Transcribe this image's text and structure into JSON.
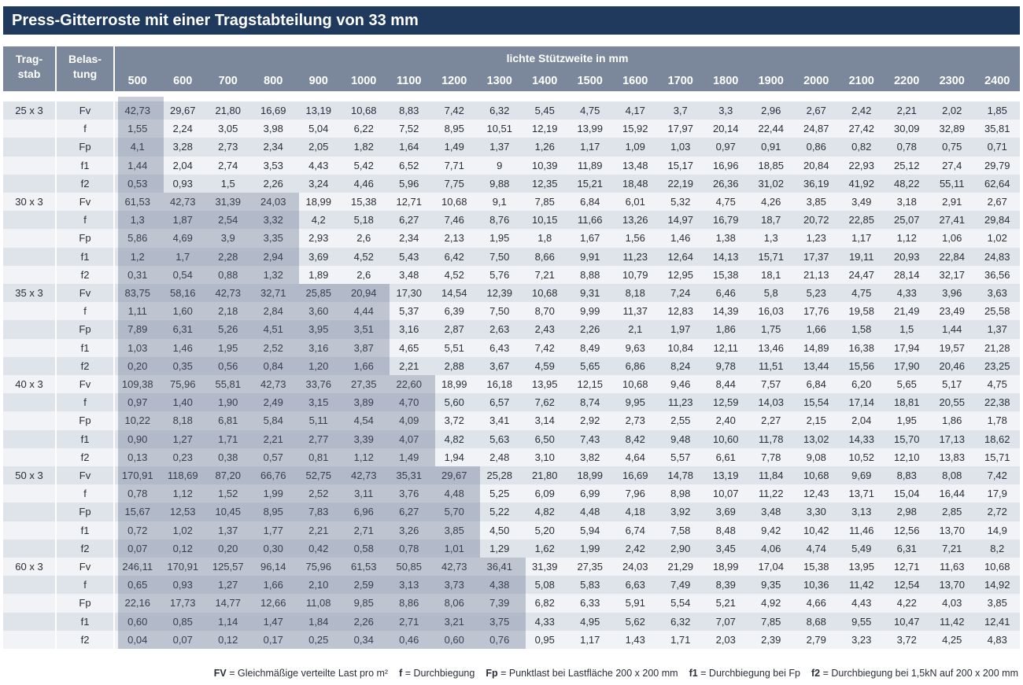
{
  "title": "Press-Gitterroste mit einer Tragstabteilung von 33 mm",
  "header": {
    "col1": [
      "Trag-",
      "stab"
    ],
    "col2": [
      "Belas-",
      "tung"
    ],
    "span_label": "lichte Stützweite in mm",
    "spans": [
      "500",
      "600",
      "700",
      "800",
      "900",
      "1000",
      "1100",
      "1200",
      "1300",
      "1400",
      "1500",
      "1600",
      "1700",
      "1800",
      "1900",
      "2000",
      "2100",
      "2200",
      "2300",
      "2400"
    ]
  },
  "groups": [
    {
      "bar": "25 x 3",
      "rows": [
        {
          "load": "Fv",
          "values": [
            "42,73",
            "29,67",
            "21,80",
            "16,69",
            "13,19",
            "10,68",
            "8,83",
            "7,42",
            "6,32",
            "5,45",
            "4,75",
            "4,17",
            "3,7",
            "3,3",
            "2,96",
            "2,67",
            "2,42",
            "2,21",
            "2,02",
            "1,85"
          ]
        },
        {
          "load": "f",
          "values": [
            "1,55",
            "2,24",
            "3,05",
            "3,98",
            "5,04",
            "6,22",
            "7,52",
            "8,95",
            "10,51",
            "12,19",
            "13,99",
            "15,92",
            "17,97",
            "20,14",
            "22,44",
            "24,87",
            "27,42",
            "30,09",
            "32,89",
            "35,81"
          ]
        },
        {
          "load": "Fp",
          "values": [
            "4,1",
            "3,28",
            "2,73",
            "2,34",
            "2,05",
            "1,82",
            "1,64",
            "1,49",
            "1,37",
            "1,26",
            "1,17",
            "1,09",
            "1,03",
            "0,97",
            "0,91",
            "0,86",
            "0,82",
            "0,78",
            "0,75",
            "0,71"
          ]
        },
        {
          "load": "f1",
          "values": [
            "1,44",
            "2,04",
            "2,74",
            "3,53",
            "4,43",
            "5,42",
            "6,52",
            "7,71",
            "9",
            "10,39",
            "11,89",
            "13,48",
            "15,17",
            "16,96",
            "18,85",
            "20,84",
            "22,93",
            "25,12",
            "27,4",
            "29,79"
          ]
        },
        {
          "load": "f2",
          "values": [
            "0,53",
            "0,93",
            "1,5",
            "2,26",
            "3,24",
            "4,46",
            "5,96",
            "7,75",
            "9,88",
            "12,35",
            "15,21",
            "18,48",
            "22,19",
            "26,36",
            "31,02",
            "36,19",
            "41,92",
            "48,22",
            "55,11",
            "62,64"
          ]
        }
      ]
    },
    {
      "bar": "30 x 3",
      "rows": [
        {
          "load": "Fv",
          "values": [
            "61,53",
            "42,73",
            "31,39",
            "24,03",
            "18,99",
            "15,38",
            "12,71",
            "10,68",
            "9,1",
            "7,85",
            "6,84",
            "6,01",
            "5,32",
            "4,75",
            "4,26",
            "3,85",
            "3,49",
            "3,18",
            "2,91",
            "2,67"
          ]
        },
        {
          "load": "f",
          "values": [
            "1,3",
            "1,87",
            "2,54",
            "3,32",
            "4,2",
            "5,18",
            "6,27",
            "7,46",
            "8,76",
            "10,15",
            "11,66",
            "13,26",
            "14,97",
            "16,79",
            "18,7",
            "20,72",
            "22,85",
            "25,07",
            "27,41",
            "29,84"
          ]
        },
        {
          "load": "Fp",
          "values": [
            "5,86",
            "4,69",
            "3,9",
            "3,35",
            "2,93",
            "2,6",
            "2,34",
            "2,13",
            "1,95",
            "1,8",
            "1,67",
            "1,56",
            "1,46",
            "1,38",
            "1,3",
            "1,23",
            "1,17",
            "1,12",
            "1,06",
            "1,02"
          ]
        },
        {
          "load": "f1",
          "values": [
            "1,2",
            "1,7",
            "2,28",
            "2,94",
            "3,69",
            "4,52",
            "5,43",
            "6,42",
            "7,50",
            "8,66",
            "9,91",
            "11,23",
            "12,64",
            "14,13",
            "15,71",
            "17,37",
            "19,11",
            "20,93",
            "22,84",
            "24,83"
          ]
        },
        {
          "load": "f2",
          "values": [
            "0,31",
            "0,54",
            "0,88",
            "1,32",
            "1,89",
            "2,6",
            "3,48",
            "4,52",
            "5,76",
            "7,21",
            "8,88",
            "10,79",
            "12,95",
            "15,38",
            "18,1",
            "21,13",
            "24,47",
            "28,14",
            "32,17",
            "36,56"
          ]
        }
      ]
    },
    {
      "bar": "35 x 3",
      "rows": [
        {
          "load": "Fv",
          "values": [
            "83,75",
            "58,16",
            "42,73",
            "32,71",
            "25,85",
            "20,94",
            "17,30",
            "14,54",
            "12,39",
            "10,68",
            "9,31",
            "8,18",
            "7,24",
            "6,46",
            "5,8",
            "5,23",
            "4,75",
            "4,33",
            "3,96",
            "3,63"
          ]
        },
        {
          "load": "f",
          "values": [
            "1,11",
            "1,60",
            "2,18",
            "2,84",
            "3,60",
            "4,44",
            "5,37",
            "6,39",
            "7,50",
            "8,70",
            "9,99",
            "11,37",
            "12,83",
            "14,39",
            "16,03",
            "17,76",
            "19,58",
            "21,49",
            "23,49",
            "25,58"
          ]
        },
        {
          "load": "Fp",
          "values": [
            "7,89",
            "6,31",
            "5,26",
            "4,51",
            "3,95",
            "3,51",
            "3,16",
            "2,87",
            "2,63",
            "2,43",
            "2,26",
            "2,1",
            "1,97",
            "1,86",
            "1,75",
            "1,66",
            "1,58",
            "1,5",
            "1,44",
            "1,37"
          ]
        },
        {
          "load": "f1",
          "values": [
            "1,03",
            "1,46",
            "1,95",
            "2,52",
            "3,16",
            "3,87",
            "4,65",
            "5,51",
            "6,43",
            "7,42",
            "8,49",
            "9,63",
            "10,84",
            "12,11",
            "13,46",
            "14,89",
            "16,38",
            "17,94",
            "19,57",
            "21,28"
          ]
        },
        {
          "load": "f2",
          "values": [
            "0,20",
            "0,35",
            "0,56",
            "0,84",
            "1,20",
            "1,66",
            "2,21",
            "2,88",
            "3,67",
            "4,59",
            "5,65",
            "6,86",
            "8,24",
            "9,78",
            "11,51",
            "13,44",
            "15,56",
            "17,90",
            "20,46",
            "23,25"
          ]
        }
      ]
    },
    {
      "bar": "40 x 3",
      "rows": [
        {
          "load": "Fv",
          "values": [
            "109,38",
            "75,96",
            "55,81",
            "42,73",
            "33,76",
            "27,35",
            "22,60",
            "18,99",
            "16,18",
            "13,95",
            "12,15",
            "10,68",
            "9,46",
            "8,44",
            "7,57",
            "6,84",
            "6,20",
            "5,65",
            "5,17",
            "4,75"
          ]
        },
        {
          "load": "f",
          "values": [
            "0,97",
            "1,40",
            "1,90",
            "2,49",
            "3,15",
            "3,89",
            "4,70",
            "5,60",
            "6,57",
            "7,62",
            "8,74",
            "9,95",
            "11,23",
            "12,59",
            "14,03",
            "15,54",
            "17,14",
            "18,81",
            "20,55",
            "22,38"
          ]
        },
        {
          "load": "Fp",
          "values": [
            "10,22",
            "8,18",
            "6,81",
            "5,84",
            "5,11",
            "4,54",
            "4,09",
            "3,72",
            "3,41",
            "3,14",
            "2,92",
            "2,73",
            "2,55",
            "2,40",
            "2,27",
            "2,15",
            "2,04",
            "1,95",
            "1,86",
            "1,78"
          ]
        },
        {
          "load": "f1",
          "values": [
            "0,90",
            "1,27",
            "1,71",
            "2,21",
            "2,77",
            "3,39",
            "4,07",
            "4,82",
            "5,63",
            "6,50",
            "7,43",
            "8,42",
            "9,48",
            "10,60",
            "11,78",
            "13,02",
            "14,33",
            "15,70",
            "17,13",
            "18,62"
          ]
        },
        {
          "load": "f2",
          "values": [
            "0,13",
            "0,23",
            "0,38",
            "0,57",
            "0,81",
            "1,12",
            "1,49",
            "1,94",
            "2,48",
            "3,10",
            "3,82",
            "4,64",
            "5,57",
            "6,61",
            "7,78",
            "9,08",
            "10,52",
            "12,10",
            "13,83",
            "15,71"
          ]
        }
      ]
    },
    {
      "bar": "50 x 3",
      "rows": [
        {
          "load": "Fv",
          "values": [
            "170,91",
            "118,69",
            "87,20",
            "66,76",
            "52,75",
            "42,73",
            "35,31",
            "29,67",
            "25,28",
            "21,80",
            "18,99",
            "16,69",
            "14,78",
            "13,19",
            "11,84",
            "10,68",
            "9,69",
            "8,83",
            "8,08",
            "7,42"
          ]
        },
        {
          "load": "f",
          "values": [
            "0,78",
            "1,12",
            "1,52",
            "1,99",
            "2,52",
            "3,11",
            "3,76",
            "4,48",
            "5,25",
            "6,09",
            "6,99",
            "7,96",
            "8,98",
            "10,07",
            "11,22",
            "12,43",
            "13,71",
            "15,04",
            "16,44",
            "17,9"
          ]
        },
        {
          "load": "Fp",
          "values": [
            "15,67",
            "12,53",
            "10,45",
            "8,95",
            "7,83",
            "6,96",
            "6,27",
            "5,70",
            "5,22",
            "4,82",
            "4,48",
            "4,18",
            "3,92",
            "3,69",
            "3,48",
            "3,30",
            "3,13",
            "2,98",
            "2,85",
            "2,72"
          ]
        },
        {
          "load": "f1",
          "values": [
            "0,72",
            "1,02",
            "1,37",
            "1,77",
            "2,21",
            "2,71",
            "3,26",
            "3,85",
            "4,50",
            "5,20",
            "5,94",
            "6,74",
            "7,58",
            "8,48",
            "9,42",
            "10,42",
            "11,46",
            "12,56",
            "13,70",
            "14,9"
          ]
        },
        {
          "load": "f2",
          "values": [
            "0,07",
            "0,12",
            "0,20",
            "0,30",
            "0,42",
            "0,58",
            "0,78",
            "1,01",
            "1,29",
            "1,62",
            "1,99",
            "2,42",
            "2,90",
            "3,45",
            "4,06",
            "4,74",
            "5,49",
            "6,31",
            "7,21",
            "8,2"
          ]
        }
      ]
    },
    {
      "bar": "60 x 3",
      "rows": [
        {
          "load": "Fv",
          "values": [
            "246,11",
            "170,91",
            "125,57",
            "96,14",
            "75,96",
            "61,53",
            "50,85",
            "42,73",
            "36,41",
            "31,39",
            "27,35",
            "24,03",
            "21,29",
            "18,99",
            "17,04",
            "15,38",
            "13,95",
            "12,71",
            "11,63",
            "10,68"
          ]
        },
        {
          "load": "f",
          "values": [
            "0,65",
            "0,93",
            "1,27",
            "1,66",
            "2,10",
            "2,59",
            "3,13",
            "3,73",
            "4,38",
            "5,08",
            "5,83",
            "6,63",
            "7,49",
            "8,39",
            "9,35",
            "10,36",
            "11,42",
            "12,54",
            "13,70",
            "14,92"
          ]
        },
        {
          "load": "Fp",
          "values": [
            "22,16",
            "17,73",
            "14,77",
            "12,66",
            "11,08",
            "9,85",
            "8,86",
            "8,06",
            "7,39",
            "6,82",
            "6,33",
            "5,91",
            "5,54",
            "5,21",
            "4,92",
            "4,66",
            "4,43",
            "4,22",
            "4,03",
            "3,85"
          ]
        },
        {
          "load": "f1",
          "values": [
            "0,60",
            "0,85",
            "1,14",
            "1,47",
            "1,84",
            "2,26",
            "2,71",
            "3,21",
            "3,75",
            "4,33",
            "4,95",
            "5,62",
            "6,32",
            "7,07",
            "7,85",
            "8,68",
            "9,55",
            "10,47",
            "11,42",
            "12,41"
          ]
        },
        {
          "load": "f2",
          "values": [
            "0,04",
            "0,07",
            "0,12",
            "0,17",
            "0,25",
            "0,34",
            "0,46",
            "0,60",
            "0,76",
            "0,95",
            "1,17",
            "1,43",
            "1,71",
            "2,03",
            "2,39",
            "2,79",
            "3,23",
            "3,72",
            "4,25",
            "4,83"
          ]
        }
      ]
    }
  ],
  "shaded_columns_per_group": [
    1,
    4,
    6,
    7,
    8,
    9
  ],
  "legend": [
    {
      "key": "FV",
      "text": " = Gleichmäßige verteilte Last pro m²"
    },
    {
      "key": "f",
      "text": " = Durchbiegung"
    },
    {
      "key": "Fp",
      "text": " = Punktlast bei Lastfläche 200 x 200 mm"
    },
    {
      "key": "f1",
      "text": " = Durchbiegung bei Fp"
    },
    {
      "key": "f2",
      "text": " = Durchbiegung bei 1,5kN auf 200 x 200 mm"
    }
  ],
  "colors": {
    "title_bg": "#1f3a5c",
    "header_bg": "#7b889b",
    "row_odd": "#dfe3ea",
    "row_even": "#f1f3f6",
    "shade": "rgba(85, 96, 128, 0.32)",
    "text": "#2a2e36"
  }
}
